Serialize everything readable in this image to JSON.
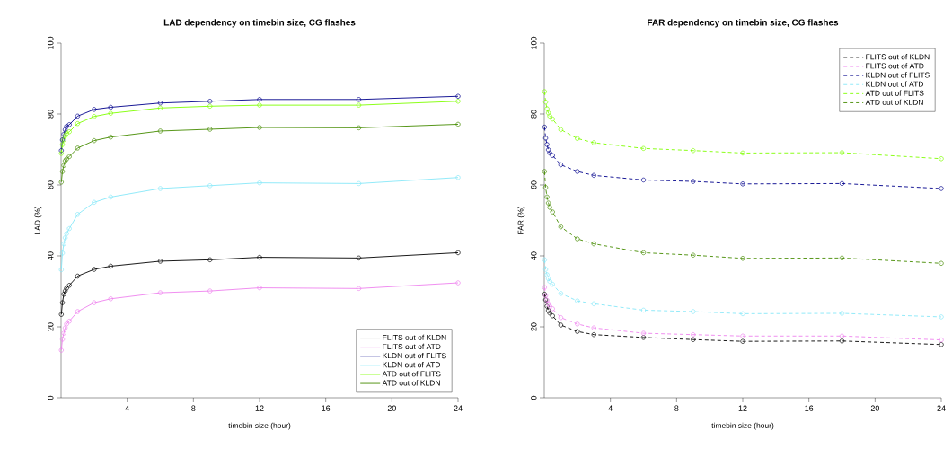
{
  "chart_data": [
    {
      "type": "line",
      "title": "LAD dependency on timebin size, CG flashes",
      "xlabel": "timebin size (hour)",
      "ylabel": "LAD (%)",
      "x": [
        0.0167,
        0.083,
        0.167,
        0.25,
        0.333,
        0.5,
        1,
        2,
        3,
        6,
        9,
        12,
        18,
        24
      ],
      "xlim": [
        0,
        24
      ],
      "ylim": [
        0,
        100
      ],
      "xticks": [
        4,
        8,
        12,
        16,
        20,
        24
      ],
      "yticks": [
        0,
        20,
        40,
        60,
        80,
        100
      ],
      "legend": "bottom right",
      "marker": "circle",
      "line_style": "solid",
      "series": [
        {
          "name": "FLITS out of KLDN",
          "color": "#000000",
          "values": [
            23.5,
            26.8,
            29.2,
            30.1,
            30.9,
            31.7,
            34.3,
            36.2,
            37.1,
            38.5,
            38.9,
            39.6,
            39.4,
            40.9
          ]
        },
        {
          "name": "FLITS out of ATD",
          "color": "#ee82ee",
          "values": [
            13.4,
            16.5,
            18.2,
            19.7,
            20.8,
            21.6,
            24.3,
            26.8,
            27.9,
            29.6,
            30.1,
            31.0,
            30.8,
            32.4
          ]
        },
        {
          "name": "KLDN out of FLITS",
          "color": "#00008b",
          "values": [
            69.7,
            72.7,
            74.3,
            75.6,
            76.5,
            77.0,
            79.4,
            81.3,
            81.9,
            83.1,
            83.6,
            84.1,
            84.1,
            85.0
          ]
        },
        {
          "name": "KLDN out of ATD",
          "color": "#87e8f8",
          "values": [
            36.1,
            40.8,
            43.4,
            45.1,
            46.3,
            47.7,
            51.7,
            55.1,
            56.6,
            59.0,
            59.8,
            60.6,
            60.4,
            62.1
          ]
        },
        {
          "name": "ATD out of FLITS",
          "color": "#7fff00",
          "values": [
            68.9,
            71.4,
            72.7,
            73.8,
            74.5,
            75.0,
            77.3,
            79.3,
            80.2,
            81.7,
            82.2,
            82.5,
            82.5,
            83.6
          ]
        },
        {
          "name": "ATD out of KLDN",
          "color": "#458b00",
          "values": [
            60.8,
            63.8,
            65.5,
            66.8,
            67.3,
            68.0,
            70.4,
            72.5,
            73.5,
            75.2,
            75.7,
            76.2,
            76.1,
            77.1
          ]
        }
      ]
    },
    {
      "type": "line",
      "title": "FAR dependency on timebin size, CG flashes",
      "xlabel": "timebin size (hour)",
      "ylabel": "FAR (%)",
      "x": [
        0.0167,
        0.083,
        0.167,
        0.25,
        0.333,
        0.5,
        1,
        2,
        3,
        6,
        9,
        12,
        18,
        24
      ],
      "xlim": [
        0,
        24
      ],
      "ylim": [
        0,
        100
      ],
      "xticks": [
        4,
        8,
        12,
        16,
        20,
        24
      ],
      "yticks": [
        0,
        20,
        40,
        60,
        80,
        100
      ],
      "legend": "top right",
      "marker": "circle",
      "line_style": "dashed",
      "series": [
        {
          "name": "FLITS out of KLDN",
          "color": "#000000",
          "values": [
            29.2,
            27.6,
            25.8,
            24.6,
            23.9,
            23.1,
            20.5,
            18.7,
            17.8,
            17.0,
            16.4,
            15.9,
            16.0,
            15.0
          ]
        },
        {
          "name": "FLITS out of ATD",
          "color": "#ee82ee",
          "values": [
            31.1,
            28.8,
            27.5,
            26.5,
            25.8,
            25.1,
            22.6,
            20.8,
            19.7,
            18.2,
            17.8,
            17.4,
            17.4,
            16.3
          ]
        },
        {
          "name": "KLDN out of FLITS",
          "color": "#00008b",
          "values": [
            76.3,
            73.2,
            71.4,
            69.9,
            69.0,
            68.3,
            65.7,
            63.8,
            62.7,
            61.4,
            61.0,
            60.3,
            60.4,
            59.0
          ]
        },
        {
          "name": "KLDN out of ATD",
          "color": "#87e8f8",
          "values": [
            38.9,
            36.2,
            34.7,
            33.6,
            32.8,
            32.0,
            29.4,
            27.3,
            26.5,
            24.7,
            24.3,
            23.7,
            23.8,
            22.8
          ]
        },
        {
          "name": "ATD out of FLITS",
          "color": "#7fff00",
          "values": [
            86.3,
            83.4,
            81.5,
            80.3,
            79.4,
            78.6,
            75.6,
            73.1,
            71.9,
            70.3,
            69.7,
            69.0,
            69.1,
            67.4
          ]
        },
        {
          "name": "ATD out of KLDN",
          "color": "#458b00",
          "values": [
            63.8,
            59.3,
            56.6,
            54.9,
            53.7,
            52.4,
            48.2,
            44.8,
            43.4,
            40.9,
            40.2,
            39.3,
            39.4,
            37.9
          ]
        }
      ]
    }
  ]
}
